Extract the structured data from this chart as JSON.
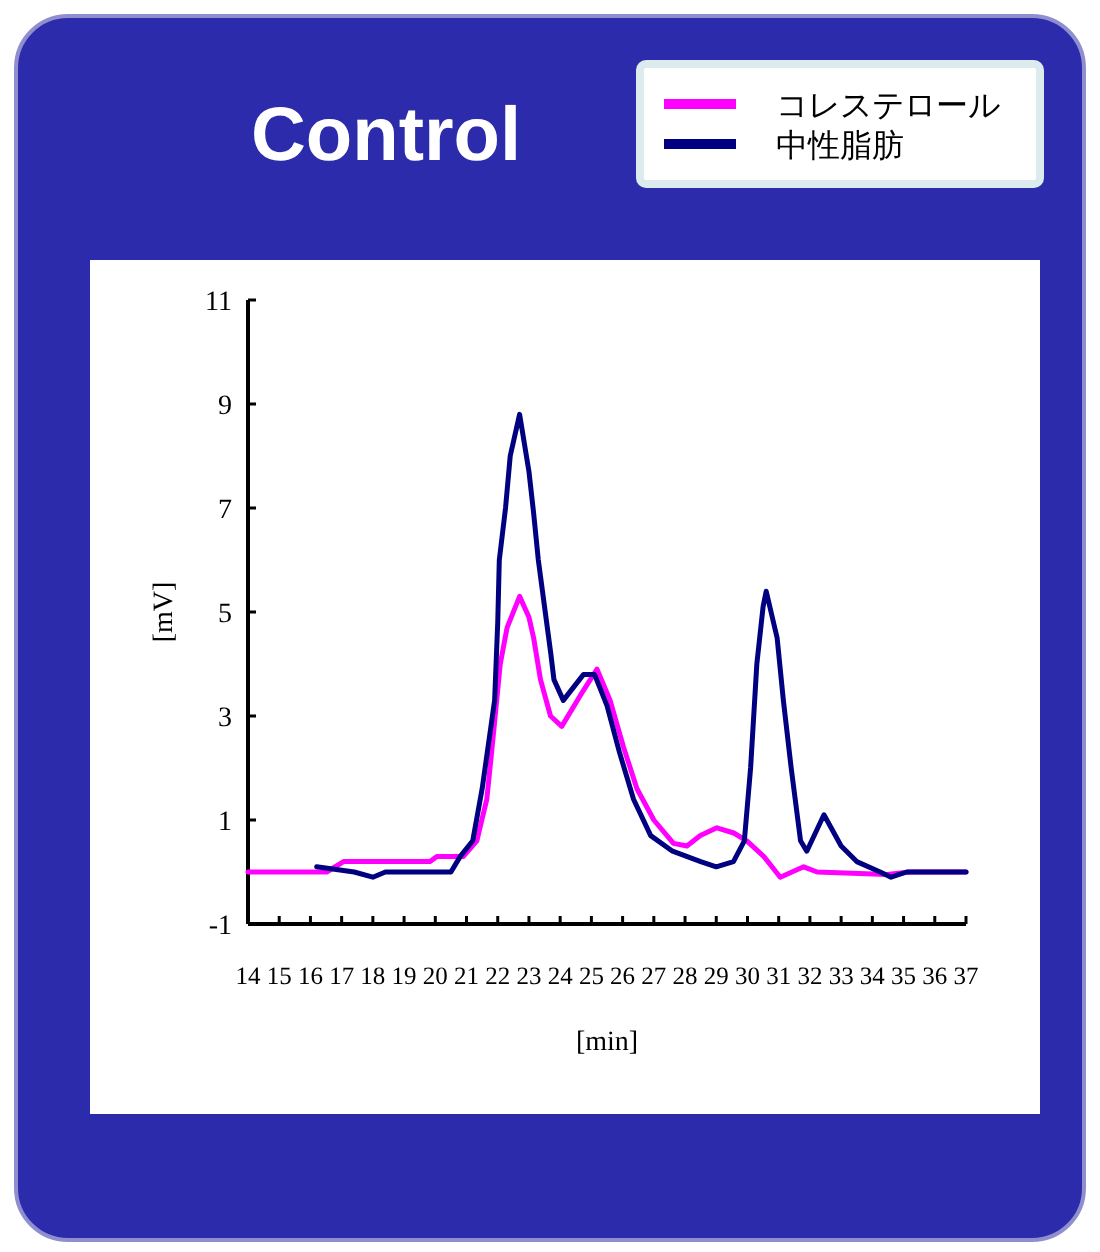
{
  "chart_data": {
    "type": "line",
    "title": "Control",
    "xlabel": "[min]",
    "ylabel": "[mV]",
    "xlim": [
      14,
      37
    ],
    "xticks": [
      14,
      15,
      16,
      17,
      18,
      19,
      20,
      21,
      22,
      23,
      24,
      25,
      26,
      27,
      28,
      29,
      30,
      31,
      32,
      33,
      34,
      35,
      36,
      37
    ],
    "ylim": [
      -1,
      11
    ],
    "yticks": [
      -1,
      1,
      3,
      5,
      7,
      9,
      11
    ],
    "grid": false,
    "legend": "top right",
    "marker": "none",
    "line_style": "solid",
    "series": [
      {
        "name": "コレステロール",
        "color": "#ff00ff",
        "x": [
          14,
          16.52,
          17.06,
          19.83,
          20.05,
          20.9,
          21.33,
          21.65,
          21.87,
          22.08,
          22.3,
          22.7,
          23.0,
          23.15,
          23.37,
          23.69,
          24.05,
          24.65,
          25.18,
          25.6,
          26.03,
          26.46,
          27.0,
          27.63,
          28.06,
          28.49,
          29.02,
          29.56,
          29.98,
          30.52,
          31.05,
          31.8,
          32.23,
          34.47,
          35.2,
          37
        ],
        "values": [
          0,
          0,
          0.2,
          0.2,
          0.3,
          0.3,
          0.6,
          1.4,
          2.7,
          4.0,
          4.7,
          5.3,
          4.9,
          4.5,
          3.7,
          3.0,
          2.8,
          3.4,
          3.9,
          3.3,
          2.4,
          1.6,
          1.0,
          0.55,
          0.5,
          0.7,
          0.85,
          0.75,
          0.6,
          0.3,
          -0.1,
          0.1,
          0.0,
          -0.05,
          0.0,
          0.0
        ]
      },
      {
        "name": "中性脂肪",
        "color": "#000080",
        "x": [
          16.2,
          17.4,
          18.0,
          18.4,
          20.5,
          20.8,
          21.2,
          21.5,
          21.9,
          22.0,
          22.05,
          22.25,
          22.4,
          22.7,
          23.0,
          23.15,
          23.3,
          23.5,
          23.7,
          23.8,
          24.1,
          24.75,
          25.1,
          25.5,
          25.9,
          26.35,
          26.9,
          27.6,
          28.5,
          29.0,
          29.55,
          29.9,
          30.1,
          30.3,
          30.5,
          30.6,
          30.95,
          31.15,
          31.4,
          31.7,
          31.9,
          32.45,
          33.0,
          33.5,
          34.25,
          34.6,
          35.1,
          37
        ],
        "values": [
          0.1,
          0.0,
          -0.1,
          0.0,
          0.0,
          0.3,
          0.6,
          1.6,
          3.3,
          4.8,
          6.0,
          7.0,
          8.0,
          8.8,
          7.7,
          6.9,
          6.0,
          5.1,
          4.2,
          3.7,
          3.3,
          3.8,
          3.8,
          3.2,
          2.3,
          1.4,
          0.7,
          0.4,
          0.2,
          0.1,
          0.2,
          0.6,
          2.0,
          4.0,
          5.1,
          5.4,
          4.5,
          3.3,
          2.0,
          0.6,
          0.4,
          1.1,
          0.5,
          0.2,
          0.0,
          -0.1,
          0.0,
          0.0
        ]
      }
    ]
  }
}
